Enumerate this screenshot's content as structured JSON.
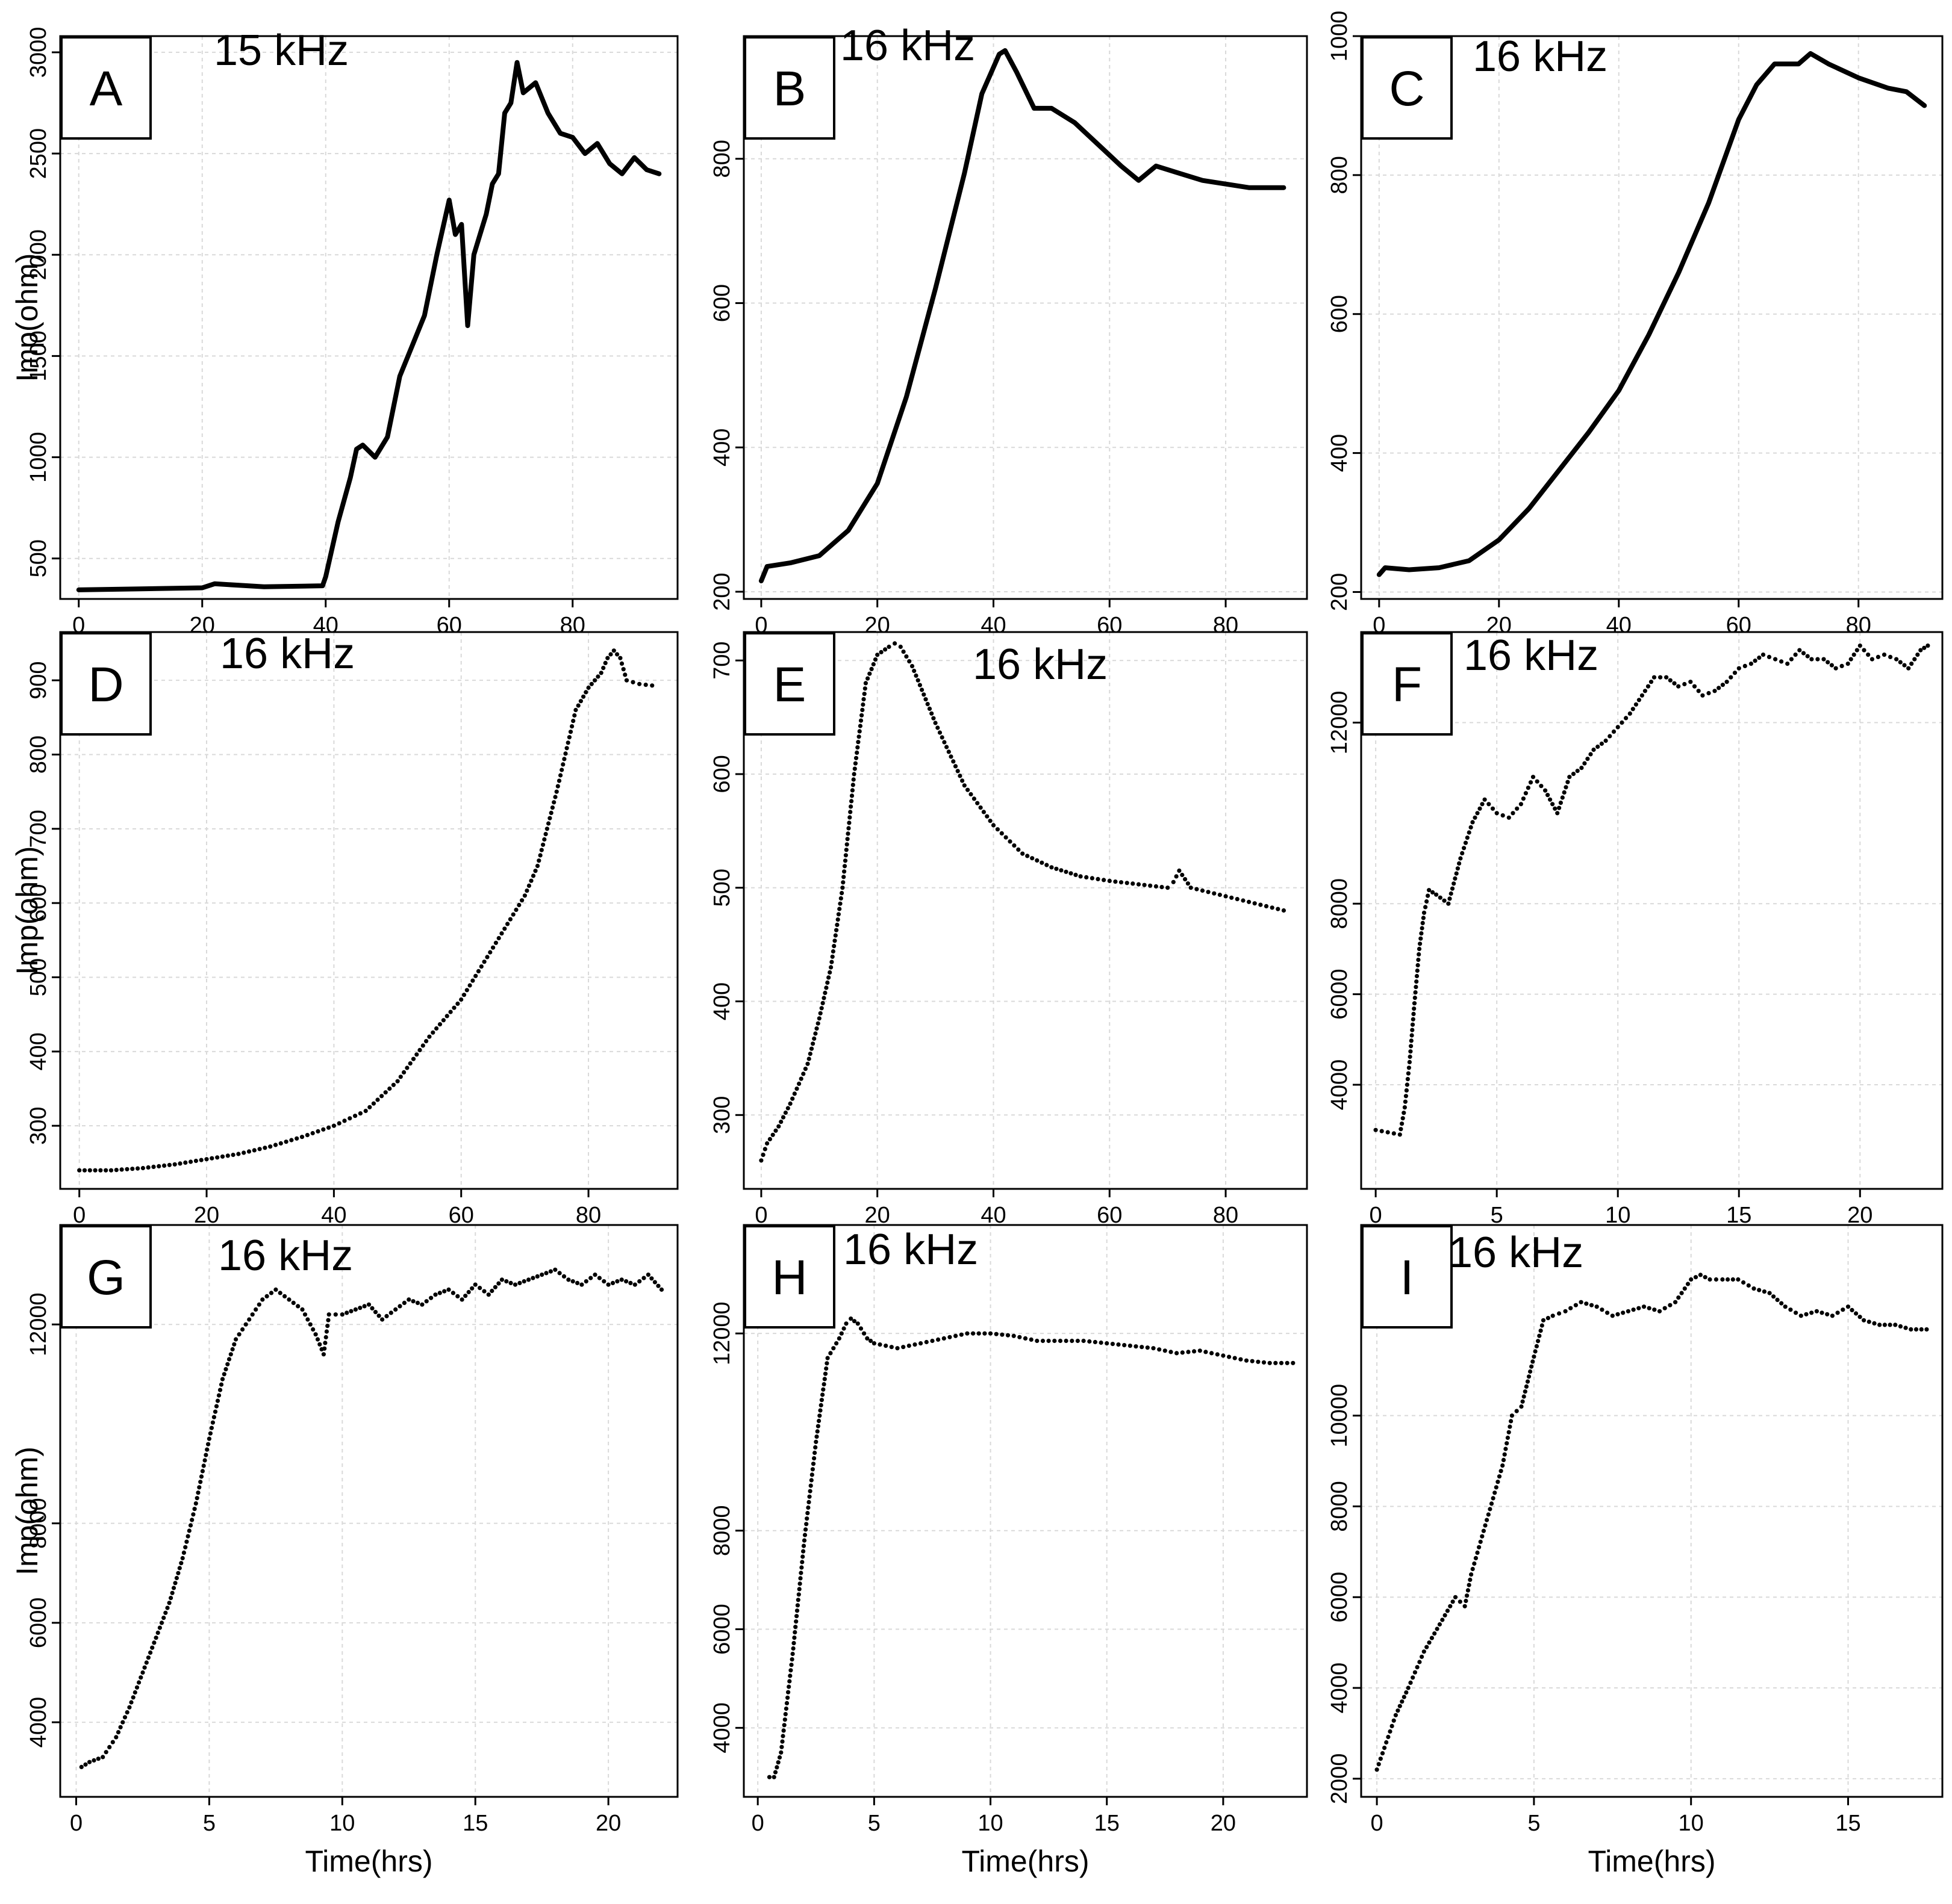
{
  "figure": {
    "x_axis_title": "Time(hrs)",
    "y_axis_title": "Imp(ohm)"
  },
  "chart_data": [
    {
      "panel": "A",
      "type": "line",
      "frequency": "15 kHz",
      "xlabel": "",
      "ylabel": "Imp(ohm)",
      "xlim": [
        -3,
        97
      ],
      "ylim": [
        300,
        3080
      ],
      "xticks": [
        0,
        20,
        40,
        60,
        80
      ],
      "yticks": [
        500,
        1000,
        1500,
        2000,
        2500,
        3000
      ],
      "grid": true,
      "x": [
        0,
        10,
        20,
        22,
        30,
        39.5,
        40,
        42,
        44,
        45,
        46,
        48,
        50,
        52,
        54,
        56,
        58,
        60,
        61,
        62,
        63,
        64,
        65,
        66,
        67,
        68,
        69,
        70,
        71,
        72,
        74,
        76,
        78,
        80,
        82,
        84,
        86,
        88,
        90,
        92,
        94
      ],
      "y": [
        345,
        350,
        355,
        375,
        360,
        365,
        410,
        680,
        900,
        1040,
        1060,
        1000,
        1100,
        1400,
        1550,
        1700,
        2000,
        2270,
        2100,
        2150,
        1650,
        2000,
        2100,
        2200,
        2350,
        2400,
        2700,
        2750,
        2950,
        2800,
        2850,
        2700,
        2600,
        2580,
        2500,
        2550,
        2450,
        2400,
        2480,
        2420,
        2400
      ]
    },
    {
      "panel": "B",
      "type": "line",
      "frequency": "16 kHz",
      "xlabel": "",
      "ylabel": "",
      "xlim": [
        -3,
        94
      ],
      "ylim": [
        190,
        970
      ],
      "xticks": [
        0,
        20,
        40,
        60,
        80
      ],
      "yticks": [
        200,
        400,
        600,
        800
      ],
      "grid": true,
      "x": [
        0,
        1,
        5,
        10,
        15,
        20,
        25,
        30,
        35,
        38,
        41,
        42,
        44,
        47,
        50,
        54,
        58,
        62,
        65,
        68,
        72,
        76,
        80,
        84,
        88,
        90
      ],
      "y": [
        215,
        235,
        240,
        250,
        285,
        350,
        470,
        620,
        780,
        890,
        945,
        950,
        920,
        870,
        870,
        850,
        820,
        790,
        770,
        790,
        780,
        770,
        765,
        760,
        760,
        760
      ]
    },
    {
      "panel": "C",
      "type": "line",
      "frequency": "16 kHz",
      "xlabel": "",
      "ylabel": "",
      "xlim": [
        -3,
        94
      ],
      "ylim": [
        190,
        1000
      ],
      "xticks": [
        0,
        20,
        40,
        60,
        80
      ],
      "yticks": [
        200,
        400,
        600,
        800,
        1000
      ],
      "grid": true,
      "x": [
        0,
        1,
        5,
        10,
        15,
        20,
        25,
        30,
        35,
        40,
        45,
        50,
        55,
        60,
        63,
        66,
        70,
        72,
        75,
        80,
        85,
        88,
        91
      ],
      "y": [
        225,
        235,
        232,
        235,
        245,
        275,
        320,
        375,
        430,
        490,
        570,
        660,
        760,
        880,
        930,
        960,
        960,
        975,
        960,
        940,
        925,
        920,
        900
      ]
    },
    {
      "panel": "D",
      "type": "scatter",
      "frequency": "16 kHz",
      "xlabel": "",
      "ylabel": "Imp(ohm)",
      "xlim": [
        -3,
        94
      ],
      "ylim": [
        215,
        965
      ],
      "xticks": [
        0,
        20,
        40,
        60,
        80
      ],
      "yticks": [
        300,
        400,
        500,
        600,
        700,
        800,
        900
      ],
      "grid": true,
      "x": [
        0,
        5,
        10,
        15,
        20,
        25,
        30,
        35,
        40,
        45,
        50,
        55,
        60,
        65,
        70,
        72,
        75,
        78,
        80,
        82,
        83,
        84,
        85,
        86,
        88,
        90
      ],
      "y": [
        240,
        240,
        243,
        248,
        255,
        262,
        272,
        285,
        300,
        320,
        360,
        420,
        470,
        540,
        610,
        650,
        750,
        860,
        890,
        910,
        930,
        940,
        930,
        900,
        895,
        893
      ]
    },
    {
      "panel": "E",
      "type": "scatter",
      "frequency": "16 kHz",
      "xlabel": "",
      "ylabel": "",
      "xlim": [
        -3,
        94
      ],
      "ylim": [
        235,
        725
      ],
      "xticks": [
        0,
        20,
        40,
        60,
        80
      ],
      "yticks": [
        300,
        400,
        500,
        600,
        700
      ],
      "grid": true,
      "x": [
        0,
        1,
        3,
        5,
        8,
        10,
        12,
        14,
        16,
        18,
        20,
        22,
        23,
        24,
        26,
        28,
        30,
        35,
        40,
        45,
        50,
        55,
        60,
        65,
        70,
        71,
        72,
        74,
        78,
        82,
        86,
        90
      ],
      "y": [
        260,
        275,
        290,
        310,
        345,
        385,
        430,
        500,
        600,
        680,
        705,
        712,
        715,
        712,
        695,
        670,
        645,
        590,
        555,
        530,
        518,
        510,
        506,
        503,
        500,
        505,
        515,
        500,
        495,
        490,
        485,
        480
      ]
    },
    {
      "panel": "F",
      "type": "scatter",
      "frequency": "16 kHz",
      "xlabel": "",
      "ylabel": "",
      "xlim": [
        -0.6,
        23.4
      ],
      "ylim": [
        1700,
        14000
      ],
      "xticks": [
        0,
        5,
        10,
        15,
        20
      ],
      "yticks": [
        4000,
        6000,
        8000,
        12000
      ],
      "grid": true,
      "x": [
        0,
        0.5,
        1,
        1.2,
        1.4,
        1.6,
        1.8,
        2,
        2.2,
        2.5,
        3,
        3.5,
        4,
        4.5,
        5,
        5.5,
        6,
        6.5,
        7,
        7.5,
        8,
        8.5,
        9,
        9.5,
        10,
        10.5,
        11,
        11.5,
        12,
        12.5,
        13,
        13.5,
        14,
        14.5,
        15,
        15.5,
        16,
        16.5,
        17,
        17.5,
        18,
        18.5,
        19,
        19.5,
        20,
        20.5,
        21,
        21.5,
        22,
        22.5,
        22.8
      ],
      "y": [
        3000,
        2950,
        2900,
        3500,
        4500,
        5800,
        7000,
        7800,
        8300,
        8200,
        8000,
        9000,
        9800,
        10300,
        10000,
        9900,
        10200,
        10800,
        10500,
        10000,
        10800,
        11000,
        11400,
        11600,
        11900,
        12200,
        12600,
        13000,
        13000,
        12800,
        12900,
        12600,
        12700,
        12900,
        13200,
        13300,
        13500,
        13400,
        13300,
        13600,
        13400,
        13400,
        13200,
        13300,
        13700,
        13400,
        13500,
        13400,
        13200,
        13600,
        13700
      ]
    },
    {
      "panel": "G",
      "type": "scatter",
      "frequency": "16 kHz",
      "xlabel": "Time(hrs)",
      "ylabel": "Imp(ohm)",
      "xlim": [
        -0.6,
        22.6
      ],
      "ylim": [
        2500,
        14000
      ],
      "xticks": [
        0,
        5,
        10,
        15,
        20
      ],
      "yticks": [
        4000,
        6000,
        8000,
        12000
      ],
      "grid": true,
      "x": [
        0.2,
        0.5,
        1,
        1.5,
        2,
        2.5,
        3,
        3.5,
        4,
        4.5,
        5,
        5.5,
        6,
        6.5,
        7,
        7.5,
        8,
        8.5,
        9,
        9.3,
        9.5,
        10,
        10.5,
        11,
        11.5,
        12,
        12.5,
        13,
        13.5,
        14,
        14.5,
        15,
        15.5,
        16,
        16.5,
        17,
        17.5,
        18,
        18.5,
        19,
        19.5,
        20,
        20.5,
        21,
        21.5,
        22
      ],
      "y": [
        3100,
        3200,
        3300,
        3700,
        4300,
        5000,
        5700,
        6400,
        7300,
        8400,
        9700,
        10900,
        11700,
        12100,
        12500,
        12700,
        12500,
        12300,
        11800,
        11400,
        12200,
        12200,
        12300,
        12400,
        12100,
        12300,
        12500,
        12400,
        12600,
        12700,
        12500,
        12800,
        12600,
        12900,
        12800,
        12900,
        13000,
        13100,
        12900,
        12800,
        13000,
        12800,
        12900,
        12800,
        13000,
        12700
      ]
    },
    {
      "panel": "H",
      "type": "scatter",
      "frequency": "16 kHz",
      "xlabel": "Time(hrs)",
      "ylabel": "",
      "xlim": [
        -0.6,
        23.6
      ],
      "ylim": [
        2600,
        14200
      ],
      "xticks": [
        0,
        5,
        10,
        15,
        20
      ],
      "yticks": [
        4000,
        6000,
        8000,
        12000
      ],
      "grid": true,
      "x": [
        0.5,
        0.7,
        1,
        1.5,
        2,
        2.5,
        3,
        3.5,
        3.8,
        4,
        4.3,
        4.7,
        5,
        6,
        7,
        8,
        9,
        10,
        11,
        12,
        13,
        14,
        15,
        16,
        17,
        18,
        19,
        20,
        21,
        22,
        23
      ],
      "y": [
        3000,
        3000,
        3500,
        5500,
        7800,
        9800,
        11500,
        11900,
        12200,
        12300,
        12200,
        11900,
        11800,
        11700,
        11800,
        11900,
        12000,
        12000,
        11950,
        11850,
        11850,
        11850,
        11800,
        11750,
        11700,
        11600,
        11650,
        11550,
        11450,
        11400,
        11400
      ]
    },
    {
      "panel": "I",
      "type": "scatter",
      "frequency": "16 kHz",
      "xlabel": "Time(hrs)",
      "ylabel": "",
      "xlim": [
        -0.5,
        18
      ],
      "ylim": [
        1600,
        14200
      ],
      "xticks": [
        0,
        5,
        10,
        15
      ],
      "yticks": [
        2000,
        4000,
        6000,
        8000,
        10000
      ],
      "grid": true,
      "x": [
        0,
        0.3,
        0.6,
        1,
        1.5,
        2,
        2.5,
        2.8,
        3,
        3.5,
        4,
        4.3,
        4.6,
        5,
        5.3,
        5.6,
        6,
        6.5,
        7,
        7.5,
        8,
        8.5,
        9,
        9.5,
        10,
        10.3,
        10.6,
        11,
        11.5,
        12,
        12.5,
        13,
        13.5,
        14,
        14.5,
        15,
        15.5,
        16,
        16.5,
        17,
        17.5
      ],
      "y": [
        2200,
        2800,
        3400,
        4000,
        4800,
        5400,
        6000,
        5800,
        6500,
        7700,
        8900,
        10000,
        10200,
        11300,
        12100,
        12200,
        12300,
        12500,
        12400,
        12200,
        12300,
        12400,
        12300,
        12500,
        13000,
        13100,
        13000,
        13000,
        13000,
        12800,
        12700,
        12400,
        12200,
        12300,
        12200,
        12400,
        12100,
        12000,
        12000,
        11900,
        11900
      ]
    }
  ]
}
